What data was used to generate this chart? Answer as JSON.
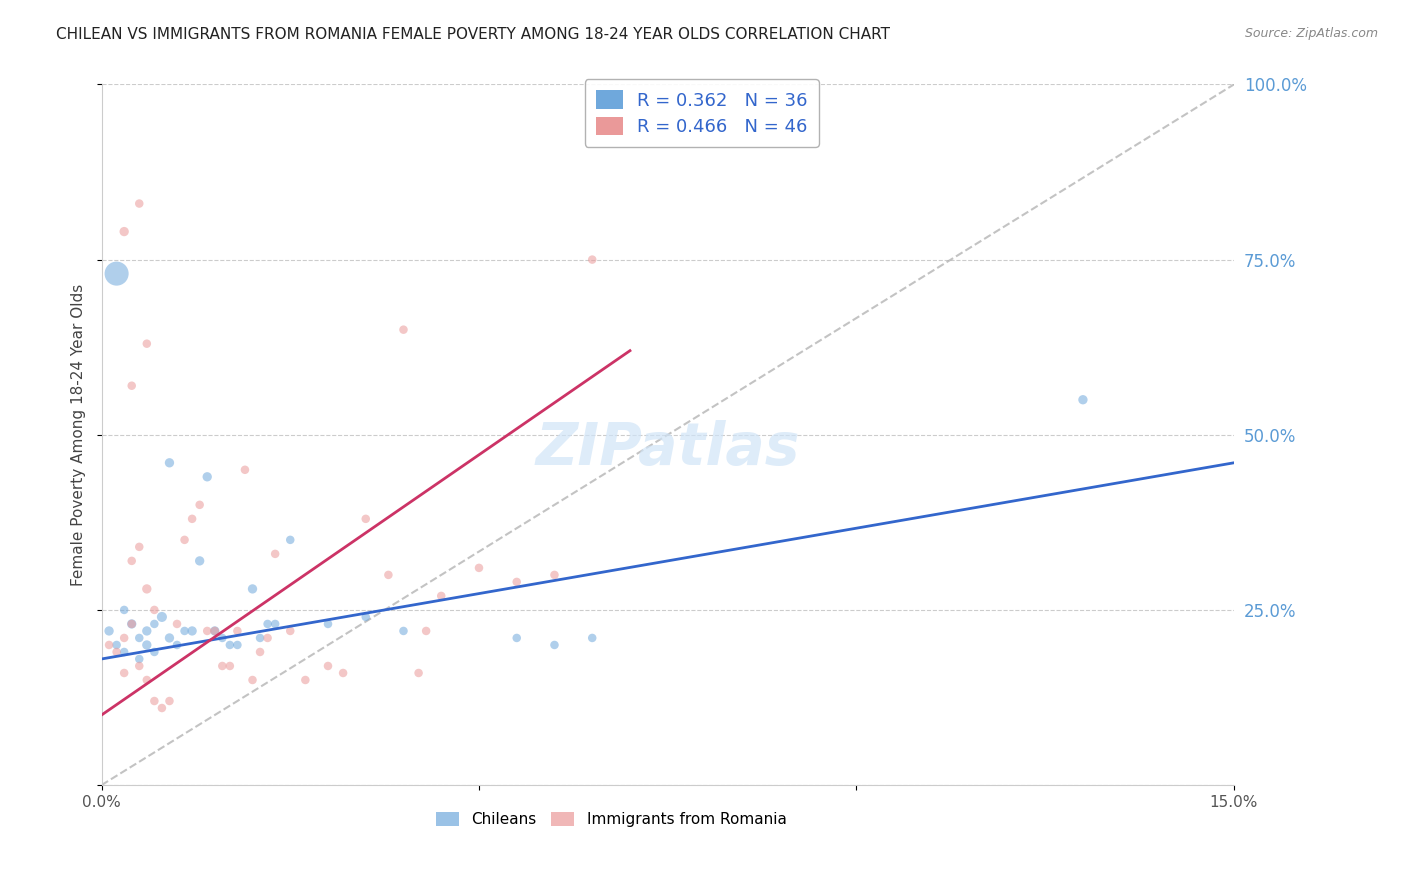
{
  "title": "CHILEAN VS IMMIGRANTS FROM ROMANIA FEMALE POVERTY AMONG 18-24 YEAR OLDS CORRELATION CHART",
  "source": "Source: ZipAtlas.com",
  "xlabel": "",
  "ylabel": "Female Poverty Among 18-24 Year Olds",
  "xlim": [
    0.0,
    0.15
  ],
  "ylim": [
    0.0,
    1.0
  ],
  "xticks": [
    0.0,
    0.025,
    0.05,
    0.075,
    0.1,
    0.125,
    0.15
  ],
  "xticklabels": [
    "0.0%",
    "",
    "",
    "",
    "",
    "",
    "15.0%"
  ],
  "yticks_right": [
    0.0,
    0.25,
    0.5,
    0.75,
    1.0
  ],
  "ytick_right_labels": [
    "",
    "25.0%",
    "50.0%",
    "75.0%",
    "100.0%"
  ],
  "blue_R": 0.362,
  "blue_N": 36,
  "pink_R": 0.466,
  "pink_N": 46,
  "blue_color": "#6fa8dc",
  "pink_color": "#ea9999",
  "blue_line_color": "#3366cc",
  "pink_line_color": "#cc3366",
  "right_axis_color": "#5b9bd5",
  "watermark": "ZIPatlas",
  "chileans_x": [
    0.001,
    0.002,
    0.003,
    0.003,
    0.004,
    0.005,
    0.005,
    0.006,
    0.006,
    0.007,
    0.007,
    0.008,
    0.009,
    0.009,
    0.01,
    0.011,
    0.012,
    0.013,
    0.014,
    0.015,
    0.016,
    0.017,
    0.018,
    0.02,
    0.021,
    0.022,
    0.023,
    0.025,
    0.03,
    0.035,
    0.04,
    0.055,
    0.06,
    0.065,
    0.13,
    0.002
  ],
  "chileans_y": [
    0.22,
    0.2,
    0.19,
    0.25,
    0.23,
    0.18,
    0.21,
    0.2,
    0.22,
    0.19,
    0.23,
    0.24,
    0.21,
    0.46,
    0.2,
    0.22,
    0.22,
    0.32,
    0.44,
    0.22,
    0.21,
    0.2,
    0.2,
    0.28,
    0.21,
    0.23,
    0.23,
    0.35,
    0.23,
    0.24,
    0.22,
    0.21,
    0.2,
    0.21,
    0.55,
    0.73
  ],
  "chileans_size": [
    30,
    25,
    25,
    25,
    30,
    25,
    25,
    30,
    30,
    25,
    25,
    35,
    30,
    30,
    25,
    25,
    30,
    30,
    30,
    30,
    25,
    25,
    25,
    30,
    25,
    25,
    25,
    25,
    25,
    25,
    25,
    25,
    25,
    25,
    30,
    200
  ],
  "romania_x": [
    0.001,
    0.002,
    0.003,
    0.003,
    0.004,
    0.004,
    0.005,
    0.005,
    0.006,
    0.006,
    0.007,
    0.008,
    0.009,
    0.01,
    0.011,
    0.012,
    0.013,
    0.014,
    0.015,
    0.016,
    0.017,
    0.018,
    0.019,
    0.02,
    0.021,
    0.022,
    0.023,
    0.025,
    0.027,
    0.03,
    0.032,
    0.035,
    0.038,
    0.04,
    0.042,
    0.043,
    0.045,
    0.05,
    0.055,
    0.06,
    0.065,
    0.003,
    0.004,
    0.005,
    0.006,
    0.007
  ],
  "romania_y": [
    0.2,
    0.19,
    0.21,
    0.16,
    0.23,
    0.32,
    0.17,
    0.34,
    0.28,
    0.15,
    0.12,
    0.11,
    0.12,
    0.23,
    0.35,
    0.38,
    0.4,
    0.22,
    0.22,
    0.17,
    0.17,
    0.22,
    0.45,
    0.15,
    0.19,
    0.21,
    0.33,
    0.22,
    0.15,
    0.17,
    0.16,
    0.38,
    0.3,
    0.65,
    0.16,
    0.22,
    0.27,
    0.31,
    0.29,
    0.3,
    0.75,
    0.79,
    0.57,
    0.83,
    0.63,
    0.25
  ],
  "romania_size": [
    25,
    25,
    25,
    25,
    25,
    25,
    25,
    25,
    30,
    25,
    25,
    25,
    25,
    25,
    25,
    25,
    25,
    25,
    25,
    25,
    25,
    25,
    25,
    25,
    25,
    25,
    25,
    25,
    25,
    25,
    25,
    25,
    25,
    25,
    25,
    25,
    25,
    25,
    25,
    25,
    25,
    30,
    25,
    25,
    25,
    25
  ],
  "blue_line_x": [
    0.0,
    0.15
  ],
  "blue_line_y": [
    0.18,
    0.46
  ],
  "pink_line_x": [
    0.0,
    0.07
  ],
  "pink_line_y": [
    0.1,
    0.62
  ],
  "diag_line_x": [
    0.0,
    0.15
  ],
  "diag_line_y": [
    0.0,
    1.0
  ]
}
